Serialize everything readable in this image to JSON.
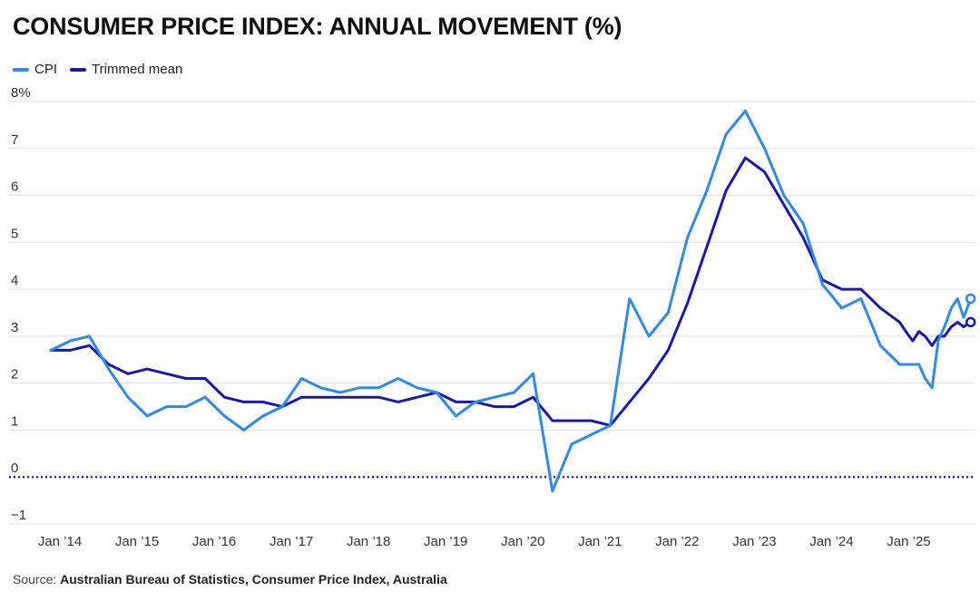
{
  "title": "CONSUMER PRICE INDEX: ANNUAL MOVEMENT (%)",
  "source_prefix": "Source:",
  "source_text": "Australian Bureau of Statistics, Consumer Price Index, Australia",
  "colors": {
    "cpi": "#2f8ae8",
    "trimmed": "#1a1aa6",
    "zero_line": "#1a1aa6",
    "grid": "#e2e2e2"
  },
  "chart_data": {
    "type": "line",
    "ylim": [
      -1,
      8
    ],
    "yticks": [
      -1,
      0,
      1,
      2,
      3,
      4,
      5,
      6,
      7,
      8
    ],
    "ytick_labels": [
      "−1",
      "0",
      "1",
      "2",
      "3",
      "4",
      "5",
      "6",
      "7",
      "8%"
    ],
    "xticks": [
      2014,
      2015,
      2016,
      2017,
      2018,
      2019,
      2020,
      2021,
      2022,
      2023,
      2024,
      2025
    ],
    "xtick_labels": [
      "Jan ’14",
      "Jan ’15",
      "Jan ’16",
      "Jan ’17",
      "Jan ’18",
      "Jan ’19",
      "Jan ’20",
      "Jan ’21",
      "Jan ’22",
      "Jan ’23",
      "Jan ’24",
      "Jan ’25"
    ],
    "xlim": [
      2014,
      2025.9
    ],
    "zero_line": true,
    "legend_position": "top-left",
    "series": [
      {
        "name": "CPI",
        "color_key": "cpi",
        "x": [
          2014.0,
          2014.25,
          2014.5,
          2014.75,
          2015.0,
          2015.25,
          2015.5,
          2015.75,
          2016.0,
          2016.25,
          2016.5,
          2016.75,
          2017.0,
          2017.25,
          2017.5,
          2017.75,
          2018.0,
          2018.25,
          2018.5,
          2018.75,
          2019.0,
          2019.25,
          2019.5,
          2019.75,
          2020.0,
          2020.25,
          2020.5,
          2020.75,
          2021.0,
          2021.25,
          2021.5,
          2021.75,
          2022.0,
          2022.25,
          2022.5,
          2022.75,
          2023.0,
          2023.25,
          2023.5,
          2023.75,
          2024.0,
          2024.25,
          2024.5,
          2024.75,
          2025.0,
          2025.17,
          2025.25,
          2025.33,
          2025.42,
          2025.5,
          2025.58,
          2025.67,
          2025.75,
          2025.83,
          2025.92
        ],
        "values": [
          2.7,
          2.9,
          3.0,
          2.3,
          1.7,
          1.3,
          1.5,
          1.5,
          1.7,
          1.3,
          1.0,
          1.3,
          1.5,
          2.1,
          1.9,
          1.8,
          1.9,
          1.9,
          2.1,
          1.9,
          1.8,
          1.3,
          1.6,
          1.7,
          1.8,
          2.2,
          -0.3,
          0.7,
          0.9,
          1.1,
          3.8,
          3.0,
          3.5,
          5.1,
          6.1,
          7.3,
          7.8,
          7.0,
          6.0,
          5.4,
          4.1,
          3.6,
          3.8,
          2.8,
          2.4,
          2.4,
          2.4,
          2.1,
          1.9,
          2.9,
          3.2,
          3.6,
          3.8,
          3.4,
          3.8
        ]
      },
      {
        "name": "Trimmed mean",
        "color_key": "trimmed",
        "x": [
          2014.0,
          2014.25,
          2014.5,
          2014.75,
          2015.0,
          2015.25,
          2015.5,
          2015.75,
          2016.0,
          2016.25,
          2016.5,
          2016.75,
          2017.0,
          2017.25,
          2017.5,
          2017.75,
          2018.0,
          2018.25,
          2018.5,
          2018.75,
          2019.0,
          2019.25,
          2019.5,
          2019.75,
          2020.0,
          2020.25,
          2020.5,
          2020.75,
          2021.0,
          2021.25,
          2021.5,
          2021.75,
          2022.0,
          2022.25,
          2022.5,
          2022.75,
          2023.0,
          2023.25,
          2023.5,
          2023.75,
          2024.0,
          2024.25,
          2024.5,
          2024.75,
          2025.0,
          2025.08,
          2025.17,
          2025.25,
          2025.33,
          2025.42,
          2025.5,
          2025.58,
          2025.67,
          2025.75,
          2025.83,
          2025.92
        ],
        "values": [
          2.7,
          2.7,
          2.8,
          2.4,
          2.2,
          2.3,
          2.2,
          2.1,
          2.1,
          1.7,
          1.6,
          1.6,
          1.5,
          1.7,
          1.7,
          1.7,
          1.7,
          1.7,
          1.6,
          1.7,
          1.8,
          1.6,
          1.6,
          1.5,
          1.5,
          1.7,
          1.2,
          1.2,
          1.2,
          1.1,
          1.6,
          2.1,
          2.7,
          3.7,
          4.9,
          6.1,
          6.8,
          6.5,
          5.8,
          5.1,
          4.2,
          4.0,
          4.0,
          3.6,
          3.3,
          3.1,
          2.9,
          3.1,
          3.0,
          2.8,
          3.0,
          3.0,
          3.2,
          3.3,
          3.2,
          3.3
        ]
      }
    ]
  }
}
